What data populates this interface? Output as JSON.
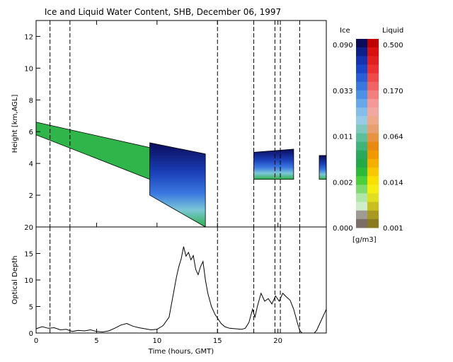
{
  "title": "Ice and Liquid Water Content, SHB, December 06, 1997",
  "chart_data": [
    {
      "type": "heatmap",
      "ylabel": "Height [km,AGL]",
      "xlim": [
        0,
        24
      ],
      "ylim": [
        0,
        13
      ],
      "xticks": [
        0,
        5,
        10,
        15,
        20
      ],
      "yticks": [
        2,
        4,
        6,
        8,
        10,
        12
      ],
      "dashed_lines_x": [
        1.15,
        2.8,
        15.0,
        18.0,
        19.75,
        20.2,
        21.8
      ],
      "cloud_regions": [
        {
          "kind": "ice",
          "x": [
            9.4,
            14.0
          ],
          "y_bottom": [
            2.0,
            0.0
          ],
          "y_top": [
            5.3,
            4.6
          ],
          "max_level": 0.09
        },
        {
          "kind": "ice",
          "x": [
            18.0,
            21.3
          ],
          "y_bottom": [
            3.0,
            3.0
          ],
          "y_top": [
            4.7,
            4.9
          ],
          "max_level": 0.05
        },
        {
          "kind": "ice",
          "x": [
            24.0,
            24.0
          ],
          "y_bottom": [
            3.0,
            3.0
          ],
          "y_top": [
            4.5,
            4.5
          ],
          "max_level": 0.03
        },
        {
          "kind": "ice",
          "x": [
            0.0,
            9.4
          ],
          "y_bottom": [
            5.8,
            3.0
          ],
          "y_top": [
            6.6,
            5.0
          ],
          "max_level": 0.005
        }
      ]
    },
    {
      "type": "line",
      "xlabel": "Time (hours, GMT)",
      "ylabel": "Optical Depth",
      "xlim": [
        0,
        24
      ],
      "ylim": [
        0,
        20
      ],
      "xticks": [
        0,
        5,
        10,
        15,
        20
      ],
      "yticks": [
        0,
        5,
        10,
        15,
        20
      ],
      "x": [
        0,
        0.5,
        1,
        1.5,
        2,
        2.5,
        3,
        3.5,
        4,
        4.5,
        5,
        5.5,
        6,
        6.5,
        7,
        7.5,
        8,
        8.5,
        9,
        9.5,
        10,
        10.5,
        11,
        11.2,
        11.4,
        11.6,
        11.8,
        12,
        12.2,
        12.4,
        12.6,
        12.8,
        13,
        13.2,
        13.4,
        13.6,
        13.8,
        14,
        14.2,
        14.5,
        14.8,
        15,
        15.3,
        15.6,
        16,
        16.5,
        17,
        17.3,
        17.6,
        17.9,
        18.1,
        18.3,
        18.6,
        18.9,
        19.2,
        19.5,
        19.8,
        20.1,
        20.4,
        20.7,
        21,
        21.3,
        21.6,
        21.8,
        22,
        22.5,
        23,
        23.2,
        23.5,
        23.8,
        24
      ],
      "y": [
        0.8,
        1.2,
        0.9,
        1.0,
        0.6,
        0.7,
        0.3,
        0.5,
        0.4,
        0.6,
        0.3,
        0.2,
        0.4,
        0.9,
        1.5,
        1.8,
        1.3,
        1.0,
        0.8,
        0.6,
        0.7,
        1.4,
        3.0,
        5.5,
        8.0,
        10.5,
        12.5,
        14.0,
        16.3,
        14.5,
        15.2,
        13.8,
        14.6,
        12.0,
        11.0,
        12.5,
        13.5,
        10.0,
        7.5,
        5.0,
        3.5,
        2.8,
        1.8,
        1.2,
        0.9,
        0.8,
        0.7,
        0.9,
        2.0,
        4.5,
        3.0,
        5.0,
        7.5,
        6.0,
        6.5,
        5.5,
        7.0,
        6.0,
        7.5,
        6.8,
        6.2,
        4.5,
        2.0,
        0.5,
        0,
        0,
        0,
        0.5,
        2.0,
        3.5,
        4.5
      ]
    }
  ],
  "colorbar": {
    "ice_label": "Ice",
    "liquid_label": "Liquid",
    "units": "[g/m3]",
    "ice_ticks": [
      "0.090",
      "0.033",
      "0.011",
      "0.002",
      "0.000"
    ],
    "liquid_ticks": [
      "0.500",
      "0.170",
      "0.064",
      "0.014",
      "0.001"
    ],
    "ice_colors": [
      "#0b0b5a",
      "#0f1f8a",
      "#1533b0",
      "#1a45c8",
      "#2a5ed8",
      "#3a78e0",
      "#4e90e6",
      "#68a8ea",
      "#84bcea",
      "#98cce6",
      "#7ec8c0",
      "#5cbf9c",
      "#3fb37a",
      "#2ba85e",
      "#25a848",
      "#2dba3a",
      "#4ccf3c",
      "#7edb70",
      "#b0e6a8",
      "#cfeccb",
      "#a09a94",
      "#7a6e66"
    ],
    "liquid_colors": [
      "#c00000",
      "#d81010",
      "#e02020",
      "#ea3030",
      "#ee4a4a",
      "#f06464",
      "#f27e7e",
      "#f49898",
      "#f2a8a0",
      "#eea88a",
      "#e8a070",
      "#e69440",
      "#e88a10",
      "#f09a00",
      "#f5b000",
      "#f8c800",
      "#fae000",
      "#f6ee10",
      "#e0e020",
      "#c8c020",
      "#a89a20",
      "#8a7a20"
    ]
  }
}
